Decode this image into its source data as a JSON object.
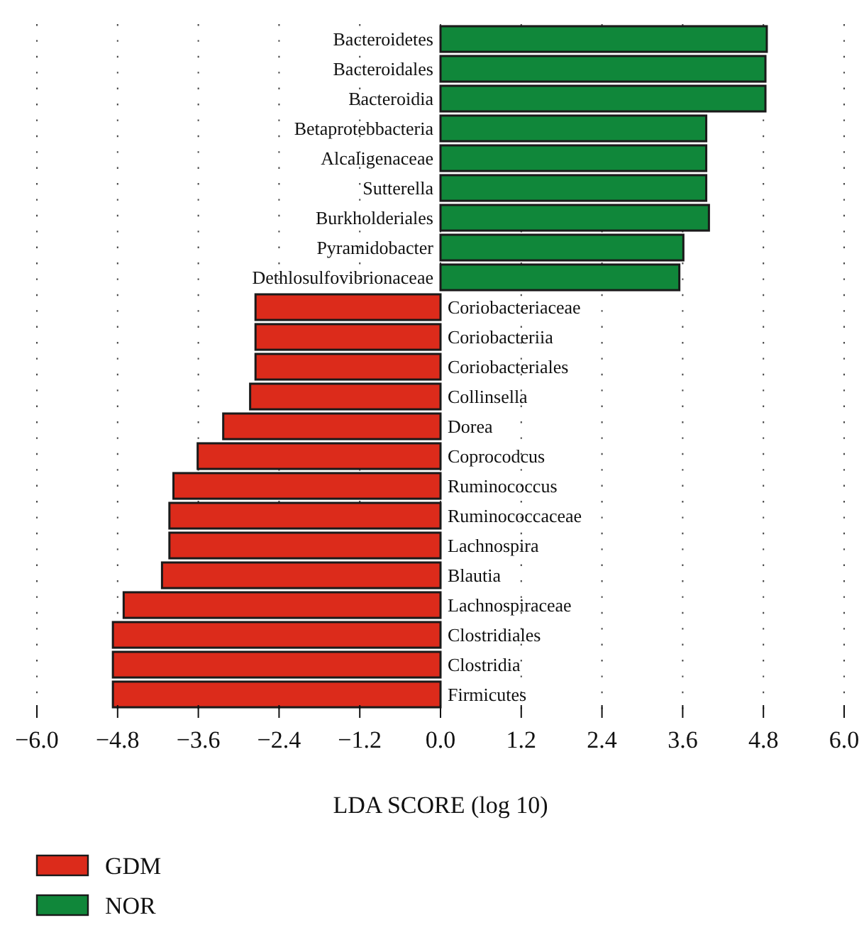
{
  "chart_data": {
    "type": "bar",
    "orientation": "horizontal",
    "xlabel": "LDA SCORE (log 10)",
    "categories": [
      "Bacteroidetes",
      "Bacteroidales",
      "Bacteroidia",
      "Betaprotebbacteria",
      "Alcaligenaceae",
      "Sutterella",
      "Burkholderiales",
      "Pyramidobacter",
      "Dethlosulfovibrionaceae",
      "Coriobacteriaceae",
      "Coriobacteriia",
      "Coriobacteriales",
      "Collinsella",
      "Dorea",
      "Coprocodcus",
      "Ruminococcus",
      "Ruminococcaceae",
      "Lachnospira",
      "Blautia",
      "Lachnospiraceae",
      "Clostridiales",
      "Clostridia",
      "Firmicutes"
    ],
    "series": [
      {
        "name": "GDM",
        "color": "#dc2b1b",
        "values": [
          null,
          null,
          null,
          null,
          null,
          null,
          null,
          null,
          null,
          -2.75,
          -2.75,
          -2.75,
          -2.83,
          -3.23,
          -3.61,
          -3.97,
          -4.03,
          -4.03,
          -4.14,
          -4.71,
          -4.87,
          -4.87,
          -4.87
        ]
      },
      {
        "name": "NOR",
        "color": "#10873a",
        "values": [
          4.85,
          4.83,
          4.83,
          3.95,
          3.95,
          3.95,
          3.99,
          3.61,
          3.55,
          null,
          null,
          null,
          null,
          null,
          null,
          null,
          null,
          null,
          null,
          null,
          null,
          null,
          null
        ]
      }
    ],
    "xlim": [
      -6.0,
      6.0
    ],
    "xticks": [
      {
        "value": -6,
        "label": "−6.0"
      },
      {
        "value": -4.8,
        "label": "−4.8"
      },
      {
        "value": -3.6,
        "label": "−3.6"
      },
      {
        "value": -2.4,
        "label": "−2.4"
      },
      {
        "value": -1.2,
        "label": "−1.2"
      },
      {
        "value": 0,
        "label": "0.0"
      },
      {
        "value": 1.2,
        "label": "1.2"
      },
      {
        "value": 2.4,
        "label": "2.4"
      },
      {
        "value": 3.6,
        "label": "3.6"
      },
      {
        "value": 4.8,
        "label": "4.8"
      },
      {
        "value": 6,
        "label": "6.0"
      }
    ],
    "grid": "x",
    "legend": "bottom left"
  }
}
